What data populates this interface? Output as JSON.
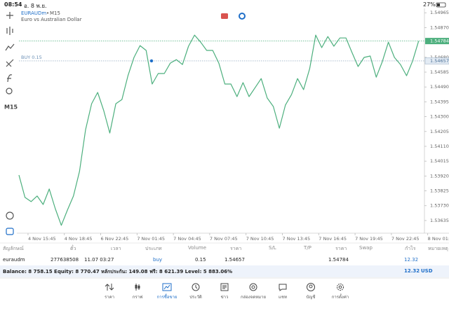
{
  "status_bar": {
    "time": "08:54",
    "date": "อ. 8 พ.ย.",
    "battery": "27%"
  },
  "toolbar": {
    "timeframe": "M15"
  },
  "chart_data": {
    "type": "line",
    "symbol": "EURAUDm",
    "timeframe": "M15",
    "description": "Euro vs Australian Dollar",
    "color": "#4caf7d",
    "values": [
      1.53926,
      1.53783,
      1.53756,
      1.53792,
      1.53738,
      1.53837,
      1.53711,
      1.53604,
      1.53702,
      1.53792,
      1.53949,
      1.54217,
      1.54383,
      1.54455,
      1.54338,
      1.54195,
      1.54383,
      1.5441,
      1.54562,
      1.54679,
      1.54755,
      1.54724,
      1.54509,
      1.54576,
      1.54576,
      1.54643,
      1.54665,
      1.54634,
      1.54751,
      1.54822,
      1.54777,
      1.54724,
      1.54724,
      1.54643,
      1.54509,
      1.54509,
      1.54428,
      1.54518,
      1.54428,
      1.54486,
      1.54544,
      1.54419,
      1.54365,
      1.54226,
      1.54374,
      1.54441,
      1.54544,
      1.54473,
      1.54607,
      1.54822,
      1.54742,
      1.54813,
      1.54751,
      1.54804,
      1.54804,
      1.5471,
      1.54621,
      1.54679,
      1.54688,
      1.54553,
      1.54652,
      1.54777,
      1.54679,
      1.54634,
      1.54562,
      1.54656,
      1.54784
    ],
    "xlim": [
      0,
      68
    ],
    "xticks": [
      {
        "value": 1.5,
        "label": "4 Nov 15:45"
      },
      {
        "value": 7.5,
        "label": "4 Nov 18:45"
      },
      {
        "value": 13.5,
        "label": "6 Nov 22:45"
      },
      {
        "value": 19.5,
        "label": "7 Nov 01:45"
      },
      {
        "value": 25.5,
        "label": "7 Nov 04:45"
      },
      {
        "value": 31.5,
        "label": "7 Nov 07:45"
      },
      {
        "value": 37.5,
        "label": "7 Nov 10:45"
      },
      {
        "value": 43.5,
        "label": "7 Nov 13:45"
      },
      {
        "value": 49.5,
        "label": "7 Nov 16:45"
      },
      {
        "value": 55.5,
        "label": "7 Nov 19:45"
      },
      {
        "value": 61.5,
        "label": "7 Nov 22:45"
      },
      {
        "value": 67.5,
        "label": "8 Nov 01:45"
      }
    ],
    "ylim": [
      1.53554,
      1.54993
    ],
    "yticks": [
      1.54965,
      {
        "value": 1.5487,
        "label": "1.54870"
      },
      {
        "value": 1.5468,
        "label": "1.54680"
      },
      1.54585,
      {
        "value": 1.5449,
        "label": "1.54490"
      },
      1.54395,
      {
        "value": 1.543,
        "label": "1.54300"
      },
      1.54205,
      {
        "value": 1.5411,
        "label": "1.54110"
      },
      1.54015,
      {
        "value": 1.5392,
        "label": "1.53920"
      },
      1.53825,
      {
        "value": 1.5373,
        "label": "1.53730"
      },
      1.53635
    ],
    "current_price": 1.54784,
    "position_line": {
      "label": "BUY 0.15",
      "price": 1.54657
    }
  },
  "table": {
    "headers": [
      "สัญลักษณ์",
      "ตั๋ว",
      "เวลา",
      "ประเภท",
      "Volume",
      "ราคา",
      "S/L",
      "T/P",
      "ราคา",
      "Swap",
      "กำไร",
      "หมายเหตุ"
    ],
    "row": {
      "symbol": "euraudm",
      "ticket": 277638508,
      "time": "11.07 03:27",
      "type": "buy",
      "volume": 0.15,
      "open_price": 1.54657,
      "price": 1.54784,
      "profit": 12.32
    }
  },
  "summary": {
    "text": "Balance: 8 758.15 Equity: 8 770.47 หลักประกัน: 149.08 ฟรี: 8 621.39 Level: 5 883.06%",
    "profit": 12.32,
    "currency": "USD"
  },
  "nav": [
    "ราคา",
    "กราฟ",
    "การซื้อขาย",
    "ประวัติ",
    "ข่าว",
    "กล่องจดหมาย",
    "แชท",
    "บัญชี",
    "การตั้งค่า"
  ]
}
